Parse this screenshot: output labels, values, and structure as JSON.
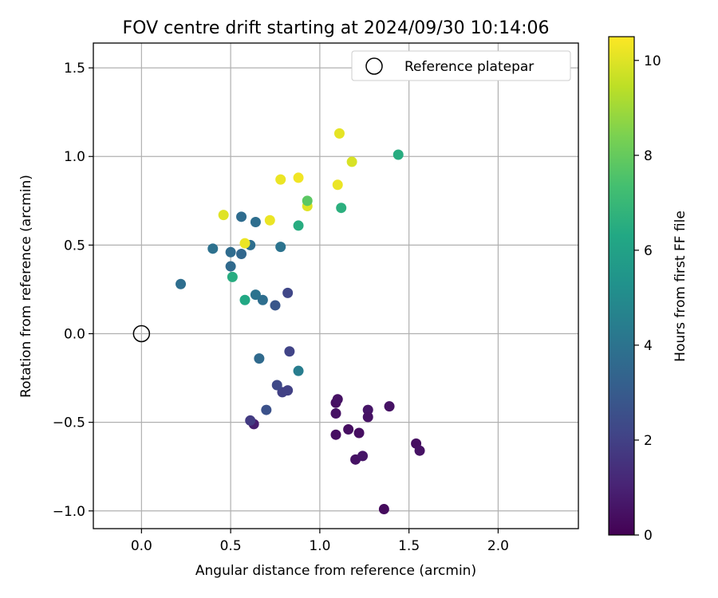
{
  "chart_data": {
    "type": "scatter",
    "title": "FOV centre drift starting at 2024/09/30 10:14:06",
    "xlabel": "Angular distance from reference (arcmin)",
    "ylabel": "Rotation from reference (arcmin)",
    "xlim": [
      -0.27,
      2.45
    ],
    "ylim": [
      -1.1,
      1.64
    ],
    "xticks": [
      0.0,
      0.5,
      1.0,
      1.5,
      2.0
    ],
    "xtick_labels": [
      "0.0",
      "0.5",
      "1.0",
      "1.5",
      "2.0"
    ],
    "yticks": [
      -1.0,
      -0.5,
      0.0,
      0.5,
      1.0,
      1.5
    ],
    "ytick_labels": [
      "−1.0",
      "−0.5",
      "0.0",
      "0.5",
      "1.0",
      "1.5"
    ],
    "grid": true,
    "legend": {
      "position": "top-right",
      "entries": [
        "Reference platepar"
      ]
    },
    "reference_point": {
      "x": 0.0,
      "y": 0.0
    },
    "colorbar": {
      "label": "Hours from first FF file",
      "colormap": "viridis",
      "range": [
        0,
        10.5
      ],
      "ticks": [
        0,
        2,
        4,
        6,
        8,
        10
      ],
      "tick_labels": [
        "0",
        "2",
        "4",
        "6",
        "8",
        "10"
      ]
    },
    "points": [
      {
        "x": 1.36,
        "y": -0.99,
        "h": 0.3
      },
      {
        "x": 1.54,
        "y": -0.62,
        "h": 0.4
      },
      {
        "x": 1.56,
        "y": -0.66,
        "h": 0.5
      },
      {
        "x": 1.2,
        "y": -0.71,
        "h": 0.5
      },
      {
        "x": 1.24,
        "y": -0.69,
        "h": 0.6
      },
      {
        "x": 1.16,
        "y": -0.54,
        "h": 0.4
      },
      {
        "x": 1.22,
        "y": -0.56,
        "h": 0.4
      },
      {
        "x": 1.09,
        "y": -0.57,
        "h": 0.4
      },
      {
        "x": 1.27,
        "y": -0.43,
        "h": 0.6
      },
      {
        "x": 1.27,
        "y": -0.47,
        "h": 0.5
      },
      {
        "x": 1.39,
        "y": -0.41,
        "h": 0.5
      },
      {
        "x": 1.09,
        "y": -0.45,
        "h": 0.5
      },
      {
        "x": 1.09,
        "y": -0.39,
        "h": 0.4
      },
      {
        "x": 1.1,
        "y": -0.37,
        "h": 0.5
      },
      {
        "x": 0.63,
        "y": -0.51,
        "h": 0.9
      },
      {
        "x": 0.61,
        "y": -0.49,
        "h": 1.8
      },
      {
        "x": 0.7,
        "y": -0.43,
        "h": 2.6
      },
      {
        "x": 0.79,
        "y": -0.33,
        "h": 2.0
      },
      {
        "x": 0.82,
        "y": -0.32,
        "h": 2.0
      },
      {
        "x": 0.76,
        "y": -0.29,
        "h": 2.3
      },
      {
        "x": 0.83,
        "y": -0.1,
        "h": 2.1
      },
      {
        "x": 0.66,
        "y": -0.14,
        "h": 3.6
      },
      {
        "x": 0.88,
        "y": -0.21,
        "h": 4.4
      },
      {
        "x": 0.82,
        "y": 0.23,
        "h": 2.2
      },
      {
        "x": 0.75,
        "y": 0.16,
        "h": 2.8
      },
      {
        "x": 0.68,
        "y": 0.19,
        "h": 3.8
      },
      {
        "x": 0.64,
        "y": 0.22,
        "h": 4.0
      },
      {
        "x": 0.58,
        "y": 0.19,
        "h": 6.3
      },
      {
        "x": 0.22,
        "y": 0.28,
        "h": 3.8
      },
      {
        "x": 0.5,
        "y": 0.38,
        "h": 3.6
      },
      {
        "x": 0.51,
        "y": 0.32,
        "h": 6.5
      },
      {
        "x": 0.4,
        "y": 0.48,
        "h": 3.9
      },
      {
        "x": 0.5,
        "y": 0.46,
        "h": 3.7
      },
      {
        "x": 0.56,
        "y": 0.45,
        "h": 3.5
      },
      {
        "x": 0.61,
        "y": 0.5,
        "h": 3.8
      },
      {
        "x": 0.58,
        "y": 0.51,
        "h": 10.2
      },
      {
        "x": 0.78,
        "y": 0.49,
        "h": 4.0
      },
      {
        "x": 0.56,
        "y": 0.66,
        "h": 3.7
      },
      {
        "x": 0.64,
        "y": 0.63,
        "h": 3.8
      },
      {
        "x": 0.46,
        "y": 0.67,
        "h": 10.0
      },
      {
        "x": 0.72,
        "y": 0.64,
        "h": 10.2
      },
      {
        "x": 0.88,
        "y": 0.61,
        "h": 6.5
      },
      {
        "x": 0.93,
        "y": 0.72,
        "h": 10.0
      },
      {
        "x": 0.93,
        "y": 0.75,
        "h": 7.8
      },
      {
        "x": 0.78,
        "y": 0.87,
        "h": 10.2
      },
      {
        "x": 0.88,
        "y": 0.88,
        "h": 10.3
      },
      {
        "x": 1.1,
        "y": 0.84,
        "h": 10.2
      },
      {
        "x": 1.12,
        "y": 0.71,
        "h": 6.6
      },
      {
        "x": 1.18,
        "y": 0.97,
        "h": 9.9
      },
      {
        "x": 1.11,
        "y": 1.13,
        "h": 10.1
      },
      {
        "x": 1.44,
        "y": 1.01,
        "h": 6.5
      }
    ]
  }
}
